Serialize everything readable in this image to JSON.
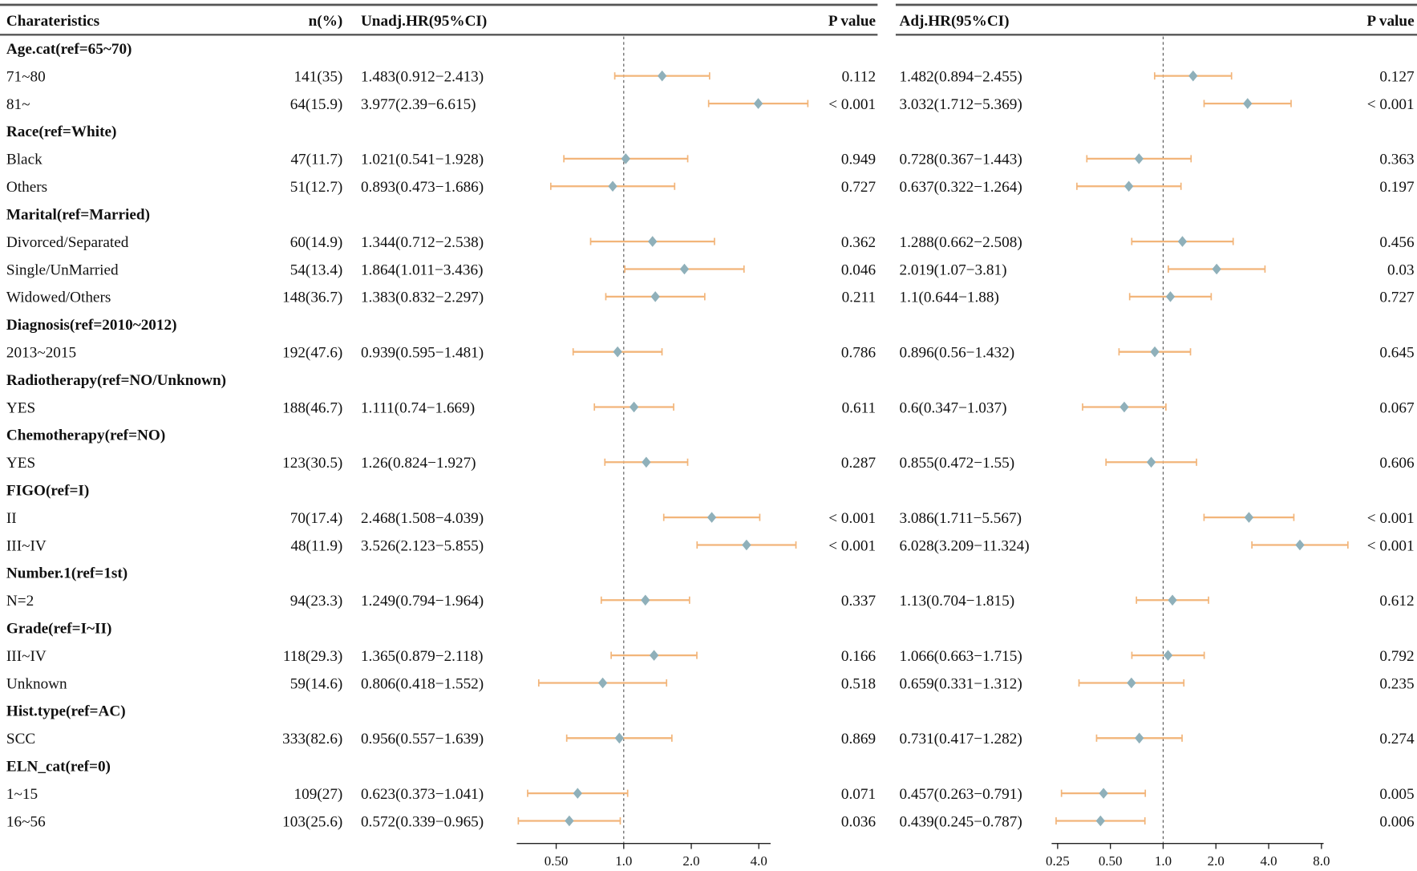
{
  "chart_data": {
    "type": "forest",
    "headers": {
      "characteristics": "Charateristics",
      "n": "n(%)",
      "unadj": "Unadj.HR(95%CI)",
      "p_unadj": "P value",
      "adj": "Adj.HR(95%CI)",
      "p_adj": "P value"
    },
    "reference_line": 1.0,
    "x_scale": "log2",
    "unadj_axis": {
      "ticks": [
        0.5,
        1,
        2,
        4
      ],
      "tick_labels": [
        "0.50",
        "1.0",
        "2.0",
        "4.0"
      ],
      "range": [
        0.33,
        7.0
      ]
    },
    "adj_axis": {
      "ticks": [
        0.25,
        0.5,
        1,
        2,
        4,
        8
      ],
      "tick_labels": [
        "0.25",
        "0.50",
        "1.0",
        "2.0",
        "4.0",
        "8.0"
      ],
      "range": [
        0.24,
        12
      ]
    },
    "colors": {
      "ci": "#f2b57a",
      "point": "#8fb0ba",
      "refline": "#555555"
    },
    "rows": [
      {
        "group": "Age.cat(ref=65~70)"
      },
      {
        "label": "71~80",
        "n": "141(35)",
        "unadj": {
          "hr": 1.483,
          "lo": 0.912,
          "hi": 2.413,
          "text": "1.483(0.912−2.413)",
          "p": "0.112"
        },
        "adj": {
          "hr": 1.482,
          "lo": 0.894,
          "hi": 2.455,
          "text": "1.482(0.894−2.455)",
          "p": "0.127"
        }
      },
      {
        "label": "81~",
        "n": "64(15.9)",
        "unadj": {
          "hr": 3.977,
          "lo": 2.39,
          "hi": 6.615,
          "text": "3.977(2.39−6.615)",
          "p": "< 0.001"
        },
        "adj": {
          "hr": 3.032,
          "lo": 1.712,
          "hi": 5.369,
          "text": "3.032(1.712−5.369)",
          "p": "< 0.001"
        }
      },
      {
        "group": "Race(ref=White)"
      },
      {
        "label": "Black",
        "n": "47(11.7)",
        "unadj": {
          "hr": 1.021,
          "lo": 0.541,
          "hi": 1.928,
          "text": "1.021(0.541−1.928)",
          "p": "0.949"
        },
        "adj": {
          "hr": 0.728,
          "lo": 0.367,
          "hi": 1.443,
          "text": "0.728(0.367−1.443)",
          "p": "0.363"
        }
      },
      {
        "label": "Others",
        "n": "51(12.7)",
        "unadj": {
          "hr": 0.893,
          "lo": 0.473,
          "hi": 1.686,
          "text": "0.893(0.473−1.686)",
          "p": "0.727"
        },
        "adj": {
          "hr": 0.637,
          "lo": 0.322,
          "hi": 1.264,
          "text": "0.637(0.322−1.264)",
          "p": "0.197"
        }
      },
      {
        "group": "Marital(ref=Married)"
      },
      {
        "label": "Divorced/Separated",
        "n": "60(14.9)",
        "unadj": {
          "hr": 1.344,
          "lo": 0.712,
          "hi": 2.538,
          "text": "1.344(0.712−2.538)",
          "p": "0.362"
        },
        "adj": {
          "hr": 1.288,
          "lo": 0.662,
          "hi": 2.508,
          "text": "1.288(0.662−2.508)",
          "p": "0.456"
        }
      },
      {
        "label": "Single/UnMarried",
        "n": "54(13.4)",
        "unadj": {
          "hr": 1.864,
          "lo": 1.011,
          "hi": 3.436,
          "text": "1.864(1.011−3.436)",
          "p": "0.046"
        },
        "adj": {
          "hr": 2.019,
          "lo": 1.07,
          "hi": 3.81,
          "text": "2.019(1.07−3.81)",
          "p": "0.03"
        }
      },
      {
        "label": "Widowed/Others",
        "n": "148(36.7)",
        "unadj": {
          "hr": 1.383,
          "lo": 0.832,
          "hi": 2.297,
          "text": "1.383(0.832−2.297)",
          "p": "0.211"
        },
        "adj": {
          "hr": 1.1,
          "lo": 0.644,
          "hi": 1.88,
          "text": "1.1(0.644−1.88)",
          "p": "0.727"
        }
      },
      {
        "group": "Diagnosis(ref=2010~2012)"
      },
      {
        "label": "2013~2015",
        "n": "192(47.6)",
        "unadj": {
          "hr": 0.939,
          "lo": 0.595,
          "hi": 1.481,
          "text": "0.939(0.595−1.481)",
          "p": "0.786"
        },
        "adj": {
          "hr": 0.896,
          "lo": 0.56,
          "hi": 1.432,
          "text": "0.896(0.56−1.432)",
          "p": "0.645"
        }
      },
      {
        "group": "Radiotherapy(ref=NO/Unknown)"
      },
      {
        "label": "YES",
        "n": "188(46.7)",
        "unadj": {
          "hr": 1.111,
          "lo": 0.74,
          "hi": 1.669,
          "text": "1.111(0.74−1.669)",
          "p": "0.611"
        },
        "adj": {
          "hr": 0.6,
          "lo": 0.347,
          "hi": 1.037,
          "text": "0.6(0.347−1.037)",
          "p": "0.067"
        }
      },
      {
        "group": "Chemotherapy(ref=NO)"
      },
      {
        "label": "YES",
        "n": "123(30.5)",
        "unadj": {
          "hr": 1.26,
          "lo": 0.824,
          "hi": 1.927,
          "text": "1.26(0.824−1.927)",
          "p": "0.287"
        },
        "adj": {
          "hr": 0.855,
          "lo": 0.472,
          "hi": 1.55,
          "text": "0.855(0.472−1.55)",
          "p": "0.606"
        }
      },
      {
        "group": "FIGO(ref=I)"
      },
      {
        "label": "II",
        "n": "70(17.4)",
        "unadj": {
          "hr": 2.468,
          "lo": 1.508,
          "hi": 4.039,
          "text": "2.468(1.508−4.039)",
          "p": "< 0.001"
        },
        "adj": {
          "hr": 3.086,
          "lo": 1.711,
          "hi": 5.567,
          "text": "3.086(1.711−5.567)",
          "p": "< 0.001"
        }
      },
      {
        "label": "III~IV",
        "n": "48(11.9)",
        "unadj": {
          "hr": 3.526,
          "lo": 2.123,
          "hi": 5.855,
          "text": "3.526(2.123−5.855)",
          "p": "< 0.001"
        },
        "adj": {
          "hr": 6.028,
          "lo": 3.209,
          "hi": 11.324,
          "text": "6.028(3.209−11.324)",
          "p": "< 0.001"
        }
      },
      {
        "group": "Number.1(ref=1st)"
      },
      {
        "label": "N=2",
        "n": "94(23.3)",
        "unadj": {
          "hr": 1.249,
          "lo": 0.794,
          "hi": 1.964,
          "text": "1.249(0.794−1.964)",
          "p": "0.337"
        },
        "adj": {
          "hr": 1.13,
          "lo": 0.704,
          "hi": 1.815,
          "text": "1.13(0.704−1.815)",
          "p": "0.612"
        }
      },
      {
        "group": "Grade(ref=I~II)"
      },
      {
        "label": "III~IV",
        "n": "118(29.3)",
        "unadj": {
          "hr": 1.365,
          "lo": 0.879,
          "hi": 2.118,
          "text": "1.365(0.879−2.118)",
          "p": "0.166"
        },
        "adj": {
          "hr": 1.066,
          "lo": 0.663,
          "hi": 1.715,
          "text": "1.066(0.663−1.715)",
          "p": "0.792"
        }
      },
      {
        "label": "Unknown",
        "n": "59(14.6)",
        "unadj": {
          "hr": 0.806,
          "lo": 0.418,
          "hi": 1.552,
          "text": "0.806(0.418−1.552)",
          "p": "0.518"
        },
        "adj": {
          "hr": 0.659,
          "lo": 0.331,
          "hi": 1.312,
          "text": "0.659(0.331−1.312)",
          "p": "0.235"
        }
      },
      {
        "group": "Hist.type(ref=AC)"
      },
      {
        "label": "SCC",
        "n": "333(82.6)",
        "unadj": {
          "hr": 0.956,
          "lo": 0.557,
          "hi": 1.639,
          "text": "0.956(0.557−1.639)",
          "p": "0.869"
        },
        "adj": {
          "hr": 0.731,
          "lo": 0.417,
          "hi": 1.282,
          "text": "0.731(0.417−1.282)",
          "p": "0.274"
        }
      },
      {
        "group": "ELN_cat(ref=0)"
      },
      {
        "label": "1~15",
        "n": "109(27)",
        "unadj": {
          "hr": 0.623,
          "lo": 0.373,
          "hi": 1.041,
          "text": "0.623(0.373−1.041)",
          "p": "0.071"
        },
        "adj": {
          "hr": 0.457,
          "lo": 0.263,
          "hi": 0.791,
          "text": "0.457(0.263−0.791)",
          "p": "0.005"
        }
      },
      {
        "label": "16~56",
        "n": "103(25.6)",
        "unadj": {
          "hr": 0.572,
          "lo": 0.339,
          "hi": 0.965,
          "text": "0.572(0.339−0.965)",
          "p": "0.036"
        },
        "adj": {
          "hr": 0.439,
          "lo": 0.245,
          "hi": 0.787,
          "text": "0.439(0.245−0.787)",
          "p": "0.006"
        }
      }
    ]
  }
}
